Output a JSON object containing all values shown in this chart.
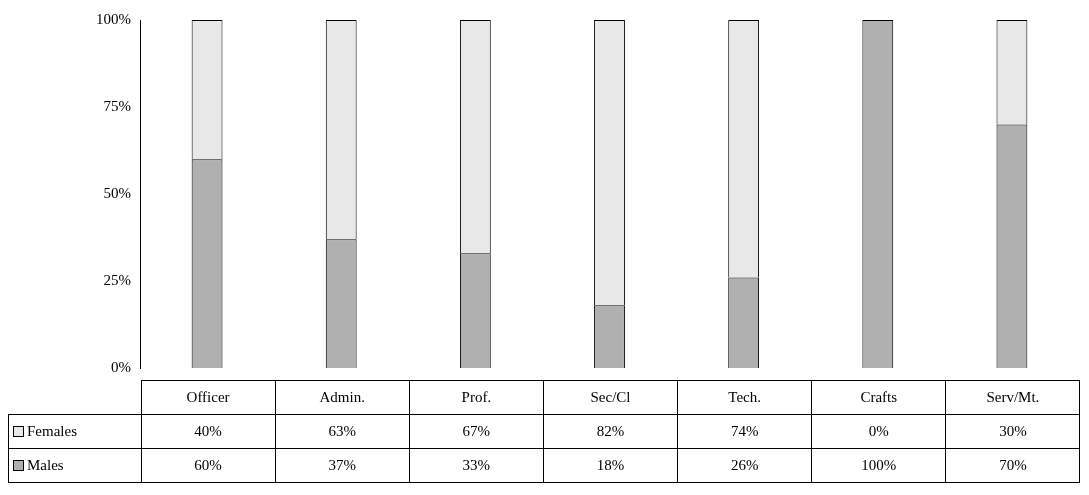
{
  "chart_data": {
    "type": "bar",
    "stacked": true,
    "categories": [
      "Officer",
      "Admin.",
      "Prof.",
      "Sec/Cl",
      "Tech.",
      "Crafts",
      "Serv/Mt."
    ],
    "series": [
      {
        "name": "Males",
        "color": "#b0b0b0",
        "values": [
          60,
          37,
          33,
          18,
          26,
          100,
          70
        ],
        "value_labels": [
          "60%",
          "37%",
          "33%",
          "18%",
          "26%",
          "100%",
          "70%"
        ]
      },
      {
        "name": "Females",
        "color": "#e8e8e8",
        "values": [
          40,
          63,
          67,
          82,
          74,
          0,
          30
        ],
        "value_labels": [
          "40%",
          "63%",
          "67%",
          "82%",
          "74%",
          "0%",
          "30%"
        ]
      }
    ],
    "ylim": [
      0,
      100
    ],
    "yticks": [
      {
        "value": 0,
        "label": "0%"
      },
      {
        "value": 25,
        "label": "25%"
      },
      {
        "value": 50,
        "label": "50%"
      },
      {
        "value": 75,
        "label": "75%"
      },
      {
        "value": 100,
        "label": "100%"
      }
    ],
    "grid": false,
    "legend": "bottom"
  }
}
